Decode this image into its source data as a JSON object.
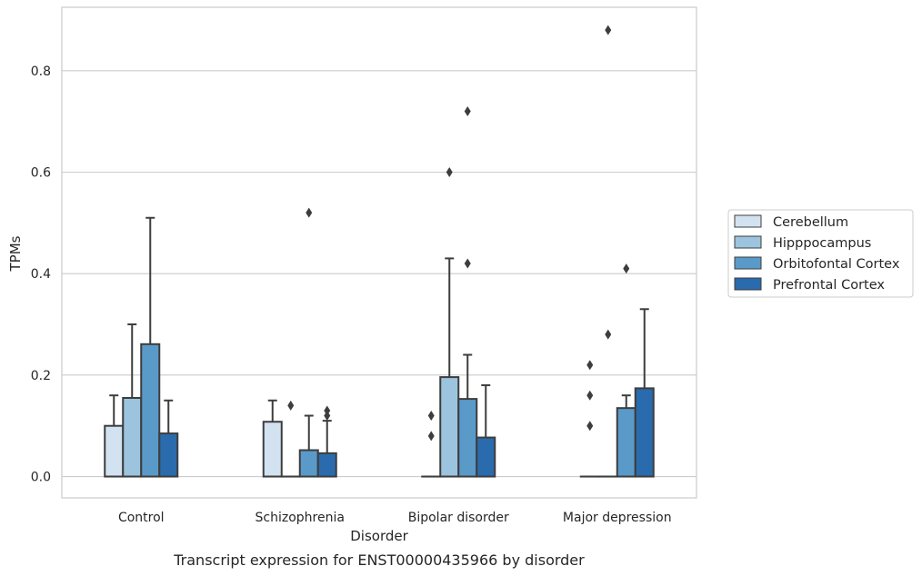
{
  "chart_data": {
    "type": "box",
    "caption": "Transcript expression for ENST00000435966 by disorder",
    "xlabel": "Disorder",
    "ylabel": "TPMs",
    "ylim": [
      -0.042,
      0.925
    ],
    "yticks": [
      0.0,
      0.2,
      0.4,
      0.6,
      0.8
    ],
    "ytick_labels": [
      "0.0",
      "0.2",
      "0.4",
      "0.6",
      "0.8"
    ],
    "grid": "horizontal",
    "legend_position": "right",
    "categories": [
      "Control",
      "Schizophrenia",
      "Bipolar disorder",
      "Major depression"
    ],
    "series": [
      {
        "name": "Cerebellum",
        "color": "#d2e2f1",
        "boxes": [
          {
            "q1": 0.0,
            "q3": 0.1,
            "median": 0.0,
            "whisker_low": 0.0,
            "whisker_high": 0.16,
            "outliers": []
          },
          {
            "q1": 0.0,
            "q3": 0.108,
            "median": 0.0,
            "whisker_low": 0.0,
            "whisker_high": 0.15,
            "outliers": []
          },
          {
            "q1": 0.0,
            "q3": 0.0,
            "median": 0.0,
            "whisker_low": 0.0,
            "whisker_high": 0.0,
            "outliers": [
              0.08,
              0.12
            ]
          },
          {
            "q1": 0.0,
            "q3": 0.0,
            "median": 0.0,
            "whisker_low": 0.0,
            "whisker_high": 0.0,
            "outliers": [
              0.1,
              0.16,
              0.22
            ]
          }
        ]
      },
      {
        "name": "Hipppocampus",
        "color": "#9cc4de",
        "boxes": [
          {
            "q1": 0.0,
            "q3": 0.155,
            "median": 0.0,
            "whisker_low": 0.0,
            "whisker_high": 0.3,
            "outliers": []
          },
          {
            "q1": 0.0,
            "q3": 0.0,
            "median": 0.0,
            "whisker_low": 0.0,
            "whisker_high": 0.0,
            "outliers": [
              0.14
            ]
          },
          {
            "q1": 0.0,
            "q3": 0.196,
            "median": 0.0,
            "whisker_low": 0.0,
            "whisker_high": 0.43,
            "outliers": [
              0.6
            ]
          },
          {
            "q1": 0.0,
            "q3": 0.0,
            "median": 0.0,
            "whisker_low": 0.0,
            "whisker_high": 0.0,
            "outliers": [
              0.28,
              0.88
            ]
          }
        ]
      },
      {
        "name": "Orbitofontal Cortex",
        "color": "#5a9ac8",
        "boxes": [
          {
            "q1": 0.0,
            "q3": 0.261,
            "median": 0.0,
            "whisker_low": 0.0,
            "whisker_high": 0.51,
            "outliers": []
          },
          {
            "q1": 0.0,
            "q3": 0.052,
            "median": 0.0,
            "whisker_low": 0.0,
            "whisker_high": 0.12,
            "outliers": [
              0.52
            ]
          },
          {
            "q1": 0.0,
            "q3": 0.153,
            "median": 0.0,
            "whisker_low": 0.0,
            "whisker_high": 0.24,
            "outliers": [
              0.42,
              0.72
            ]
          },
          {
            "q1": 0.0,
            "q3": 0.135,
            "median": 0.0,
            "whisker_low": 0.0,
            "whisker_high": 0.16,
            "outliers": [
              0.41
            ]
          }
        ]
      },
      {
        "name": "Prefrontal Cortex",
        "color": "#2a6bad",
        "boxes": [
          {
            "q1": 0.0,
            "q3": 0.085,
            "median": 0.0,
            "whisker_low": 0.0,
            "whisker_high": 0.15,
            "outliers": []
          },
          {
            "q1": 0.0,
            "q3": 0.046,
            "median": 0.0,
            "whisker_low": 0.0,
            "whisker_high": 0.11,
            "outliers": [
              0.12,
              0.13
            ]
          },
          {
            "q1": 0.0,
            "q3": 0.077,
            "median": 0.0,
            "whisker_low": 0.0,
            "whisker_high": 0.18,
            "outliers": []
          },
          {
            "q1": 0.0,
            "q3": 0.174,
            "median": 0.0,
            "whisker_low": 0.0,
            "whisker_high": 0.33,
            "outliers": []
          }
        ]
      }
    ]
  }
}
